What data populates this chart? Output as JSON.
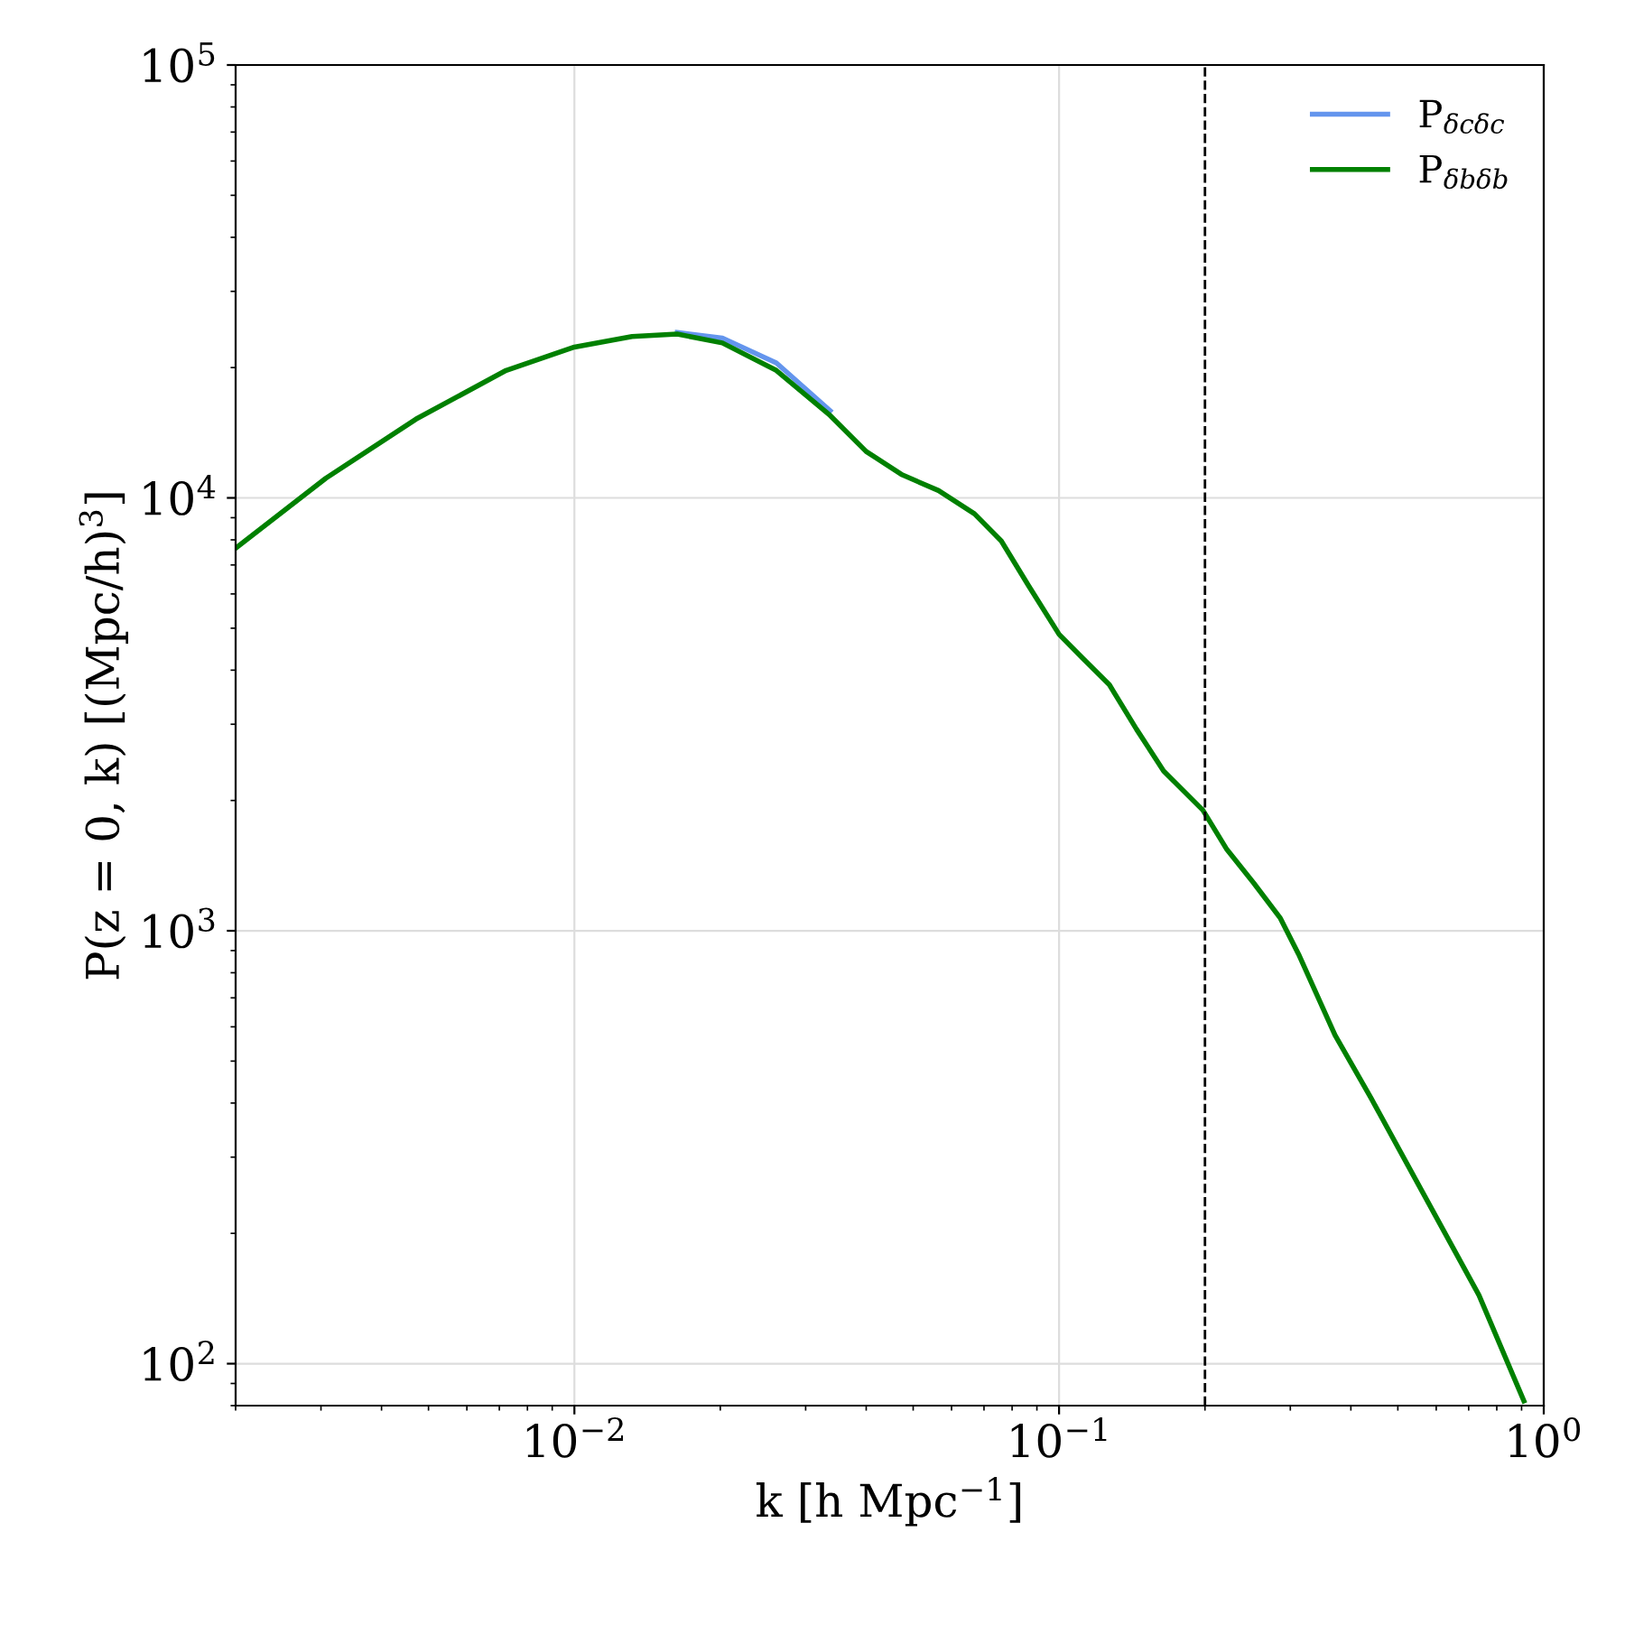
{
  "chart_data": {
    "type": "line",
    "xlabel": "k [h Mpc$^{−1}$]",
    "ylabel": "P(z = 0, k) [(Mpc/h)$^{3}$]",
    "log": "xy",
    "xlim": [
      0.002,
      1
    ],
    "ylim": [
      80,
      100000
    ],
    "xticks": [
      {
        "value": 0.01,
        "label": "10$^{−2}$"
      },
      {
        "value": 0.1,
        "label": "10$^{−1}$"
      },
      {
        "value": 1,
        "label": "10$^{0}$"
      }
    ],
    "yticks": [
      {
        "value": 100,
        "label": "10$^{2}$"
      },
      {
        "value": 1000,
        "label": "10$^{3}$"
      },
      {
        "value": 10000,
        "label": "10$^{4}$"
      },
      {
        "value": 100000,
        "label": "10$^{5}$"
      }
    ],
    "grid": true,
    "legend": "top right",
    "line_style": "solid",
    "marker": "none",
    "x": [
      0.002,
      0.00307,
      0.00471,
      0.00723,
      0.01,
      0.01315,
      0.0163,
      0.0202,
      0.0261,
      0.0337,
      0.04,
      0.0475,
      0.0564,
      0.0669,
      0.076,
      0.0865,
      0.1,
      0.1117,
      0.127,
      0.1445,
      0.1643,
      0.198,
      0.222,
      0.252,
      0.286,
      0.312,
      0.371,
      0.44,
      0.569,
      0.735,
      0.91
    ],
    "series": [
      {
        "name": "P$_{δcδc}$",
        "color": "#6495ed",
        "values": [
          null,
          null,
          null,
          null,
          null,
          null,
          24100,
          23400,
          20500,
          15900,
          null,
          null,
          null,
          null,
          null,
          null,
          null,
          null,
          null,
          null,
          null,
          null,
          null,
          null,
          null,
          null,
          null,
          null,
          null,
          null,
          null
        ]
      },
      {
        "name": "P$_{δbδb}$",
        "color": "#008000",
        "values": [
          7650,
          11100,
          15200,
          19700,
          22300,
          23600,
          23900,
          22800,
          19700,
          15500,
          12800,
          11300,
          10400,
          9190,
          7950,
          6270,
          4840,
          4270,
          3700,
          2920,
          2340,
          1900,
          1540,
          1290,
          1070,
          883,
          574,
          411,
          243,
          144,
          82
        ]
      }
    ],
    "ref_lines": [
      {
        "axis": "x",
        "value": 0.2,
        "color": "#000000",
        "line_style": "dashed"
      }
    ]
  }
}
